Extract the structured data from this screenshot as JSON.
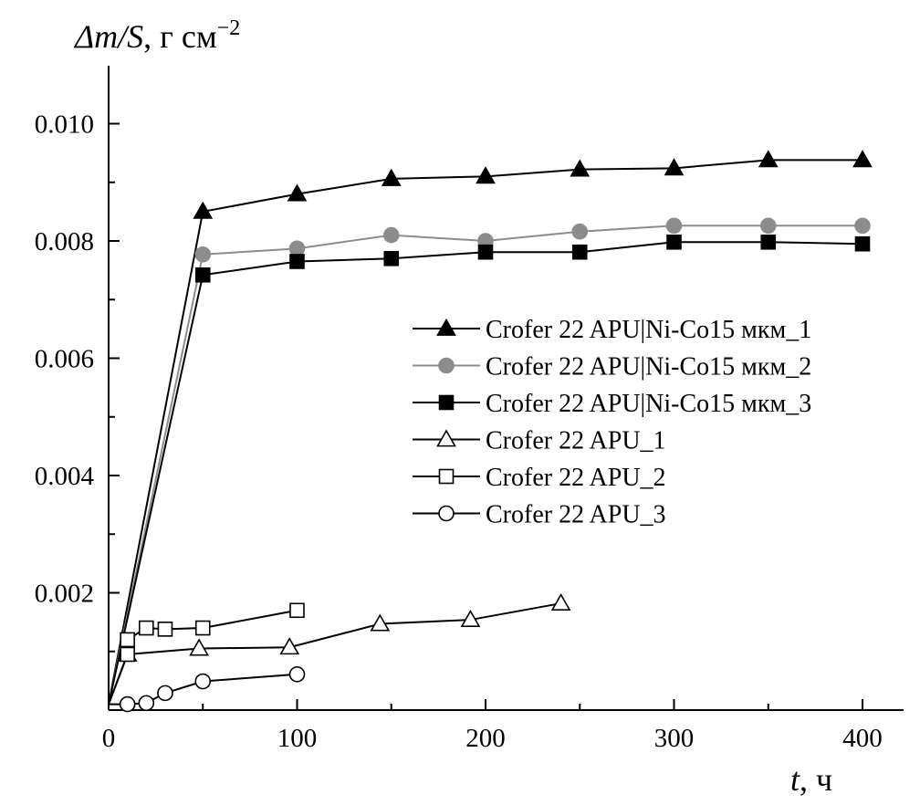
{
  "chart_data": {
    "type": "line",
    "title": "",
    "ylabel": {
      "main": "Δm/S",
      "unit": ", г см",
      "sup": "−2"
    },
    "xlabel": {
      "main": "t",
      "unit": ", ч"
    },
    "xlim": [
      0,
      420
    ],
    "ylim": [
      0,
      0.011
    ],
    "xticks": [
      0,
      100,
      200,
      300,
      400
    ],
    "xtick_labels": [
      "0",
      "100",
      "200",
      "300",
      "400"
    ],
    "yticks": [
      0.002,
      0.004,
      0.006,
      0.008,
      0.01
    ],
    "ytick_labels": [
      "0.002",
      "0.004",
      "0.006",
      "0.008",
      "0.010"
    ],
    "grid": false,
    "legend_position": "right",
    "series": [
      {
        "name": "Crofer 22 APU|Ni-Co15 мкм_1",
        "marker": "triangle",
        "fill": "#000000",
        "line_color": "#000000",
        "x": [
          0,
          50,
          100,
          150,
          200,
          250,
          300,
          350,
          400
        ],
        "y": [
          0.0001,
          0.0085,
          0.0088,
          0.00906,
          0.0091,
          0.00922,
          0.00924,
          0.00938,
          0.00938
        ]
      },
      {
        "name": "Crofer 22 APU|Ni-Co15 мкм_2",
        "marker": "circle",
        "fill": "#8c8c8c",
        "line_color": "#8c8c8c",
        "x": [
          0,
          50,
          100,
          150,
          200,
          250,
          300,
          350,
          400
        ],
        "y": [
          0.0001,
          0.00777,
          0.00787,
          0.0081,
          0.008,
          0.00816,
          0.00826,
          0.00826,
          0.00826
        ]
      },
      {
        "name": "Crofer 22 APU|Ni-Co15 мкм_3",
        "marker": "square",
        "fill": "#000000",
        "line_color": "#000000",
        "x": [
          0,
          50,
          100,
          150,
          200,
          250,
          300,
          350,
          400
        ],
        "y": [
          0.0001,
          0.00742,
          0.00765,
          0.0077,
          0.00781,
          0.00781,
          0.00798,
          0.00798,
          0.00795
        ]
      },
      {
        "name": "Crofer 22 APU_1",
        "marker": "triangle",
        "fill": "#ffffff",
        "line_color": "#000000",
        "x": [
          0,
          10,
          48,
          96,
          144,
          192,
          240
        ],
        "y": [
          0.0001,
          0.00095,
          0.00105,
          0.00107,
          0.00147,
          0.00154,
          0.00182
        ]
      },
      {
        "name": "Crofer 22 APU_2",
        "marker": "square",
        "fill": "#ffffff",
        "line_color": "#000000",
        "x": [
          0,
          10,
          10,
          20,
          30,
          50,
          100
        ],
        "y": [
          0.0001,
          0.00095,
          0.0012,
          0.0014,
          0.00138,
          0.0014,
          0.0017
        ]
      },
      {
        "name": "Crofer 22 APU_3",
        "marker": "circle",
        "fill": "#ffffff",
        "line_color": "#000000",
        "x": [
          0,
          10,
          20,
          30,
          50,
          100
        ],
        "y": [
          0.0001,
          0.0001,
          0.00012,
          0.00029,
          0.00049,
          0.00061
        ]
      }
    ]
  }
}
